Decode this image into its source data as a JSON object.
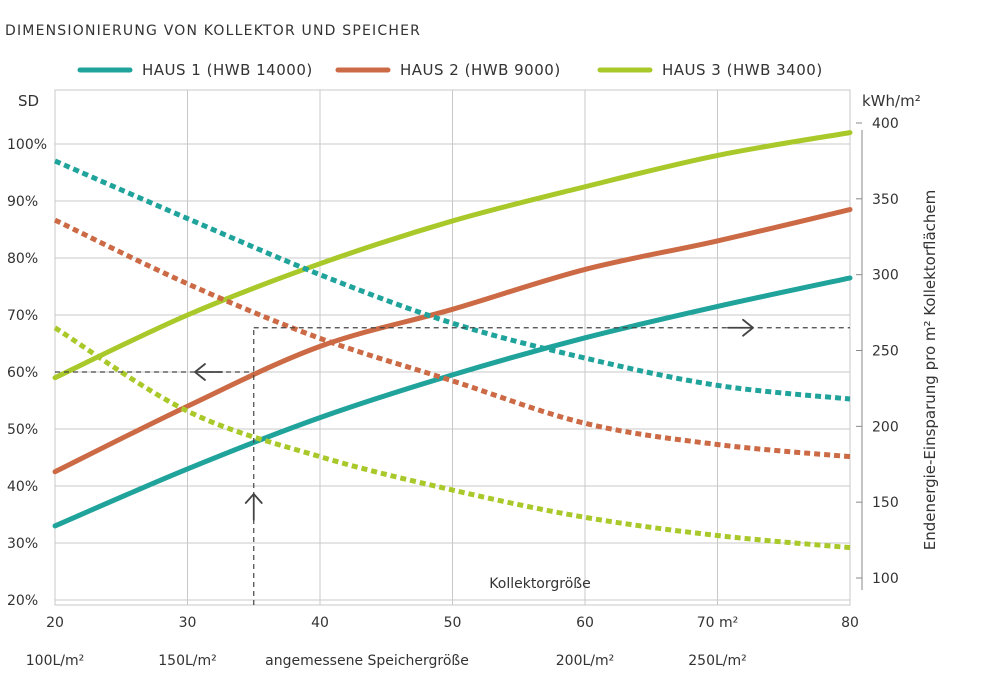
{
  "chart_data": {
    "type": "line",
    "title": "DIMENSIONIERUNG VON KOLLEKTOR UND SPEICHER",
    "xlabel": "Kollektorgröße",
    "x": [
      20,
      30,
      40,
      50,
      60,
      70,
      80
    ],
    "x_tick_labels": [
      "20",
      "30",
      "40",
      "50",
      "60",
      "70 m²",
      "80"
    ],
    "xlim": [
      20,
      80
    ],
    "y_left": {
      "label": "SD",
      "lim": [
        20,
        100
      ],
      "ticks": [
        100,
        90,
        80,
        70,
        60,
        50,
        40,
        30,
        20
      ],
      "tick_labels": [
        "100%",
        "90%",
        "80%",
        "70%",
        "60%",
        "50%",
        "40%",
        "30%",
        "20%"
      ]
    },
    "y_right": {
      "unit_label": "kWh/m²",
      "title": "Endenergie-Einsparung pro m² Kollektorflächem",
      "ticks": [
        400,
        350,
        300,
        250,
        200,
        150,
        100
      ],
      "tick_labels": [
        "400",
        "350",
        "300",
        "250",
        "200",
        "150",
        "100"
      ],
      "lim": [
        100,
        400
      ]
    },
    "storage_axis": {
      "label": "angemessene Speichergröße",
      "ticks": [
        {
          "x": 20,
          "label": "100L/m²"
        },
        {
          "x": 30,
          "label": "150L/m²"
        },
        {
          "x": 60,
          "label": "200L/m²"
        },
        {
          "x": 70,
          "label": "250L/m²"
        }
      ]
    },
    "series": [
      {
        "name": "HAUS 1 (HWB 14000)",
        "color": "#1fa39b",
        "axis": "left",
        "style": "solid",
        "x": [
          20,
          30,
          40,
          50,
          60,
          70,
          80
        ],
        "y": [
          33,
          43,
          52,
          59.5,
          66,
          71.5,
          76.5
        ]
      },
      {
        "name": "HAUS 2 (HWB 9000)",
        "color": "#cc6a45",
        "axis": "left",
        "style": "solid",
        "x": [
          20,
          30,
          40,
          50,
          60,
          70,
          80
        ],
        "y": [
          42.5,
          54,
          64.5,
          71,
          78,
          83,
          88.5
        ]
      },
      {
        "name": "HAUS 3 (HWB 3400)",
        "color": "#a9c92a",
        "axis": "left",
        "style": "solid",
        "x": [
          20,
          30,
          40,
          50,
          60,
          70,
          80
        ],
        "y": [
          59,
          70,
          79,
          86.5,
          92.5,
          98,
          102
        ]
      },
      {
        "name": "HAUS 1 (HWB 14000)",
        "color": "#1fa39b",
        "axis": "right",
        "style": "dotted",
        "x": [
          20,
          30,
          40,
          50,
          60,
          70,
          80
        ],
        "y": [
          375,
          337,
          300,
          268,
          245,
          227,
          218
        ]
      },
      {
        "name": "HAUS 2 (HWB 9000)",
        "color": "#cc6a45",
        "axis": "right",
        "style": "dotted",
        "x": [
          20,
          30,
          40,
          50,
          60,
          70,
          80
        ],
        "y": [
          336,
          294,
          258,
          230,
          202,
          188,
          180
        ]
      },
      {
        "name": "HAUS 3 (HWB 3400)",
        "color": "#a9c92a",
        "axis": "right",
        "style": "dotted",
        "x": [
          20,
          30,
          40,
          50,
          60,
          70,
          80
        ],
        "y": [
          265,
          210,
          180,
          158,
          140,
          128,
          120
        ]
      }
    ],
    "reading_example": {
      "x": 35,
      "sd": 60,
      "kwh": 265
    },
    "grid": true,
    "legend": "top"
  }
}
